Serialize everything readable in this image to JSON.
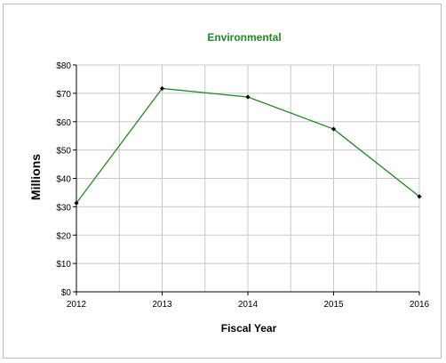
{
  "chart_data": {
    "type": "line",
    "title": "Environmental",
    "xlabel": "Fiscal Year",
    "ylabel": "Millions",
    "x": [
      "2012",
      "2013",
      "2014",
      "2015",
      "2016"
    ],
    "series": [
      {
        "values": [
          31.3,
          71.7,
          68.7,
          57.4,
          33.6
        ]
      }
    ],
    "ylim": [
      0,
      80
    ],
    "y_tick_values": [
      0,
      10,
      20,
      30,
      40,
      50,
      60,
      70,
      80
    ],
    "y_tick_labels": [
      "$0",
      "$10",
      "$20",
      "$30",
      "$40",
      "$50",
      "$60",
      "$70",
      "$80"
    ],
    "x_tick_labels": [
      "2012",
      "2013",
      "2014",
      "2015",
      "2016"
    ],
    "grid": true,
    "colors": {
      "line": "#1f8a1f",
      "title": "#1f8a1f",
      "marker": "#000000",
      "grid": "#c8c8c8"
    }
  }
}
